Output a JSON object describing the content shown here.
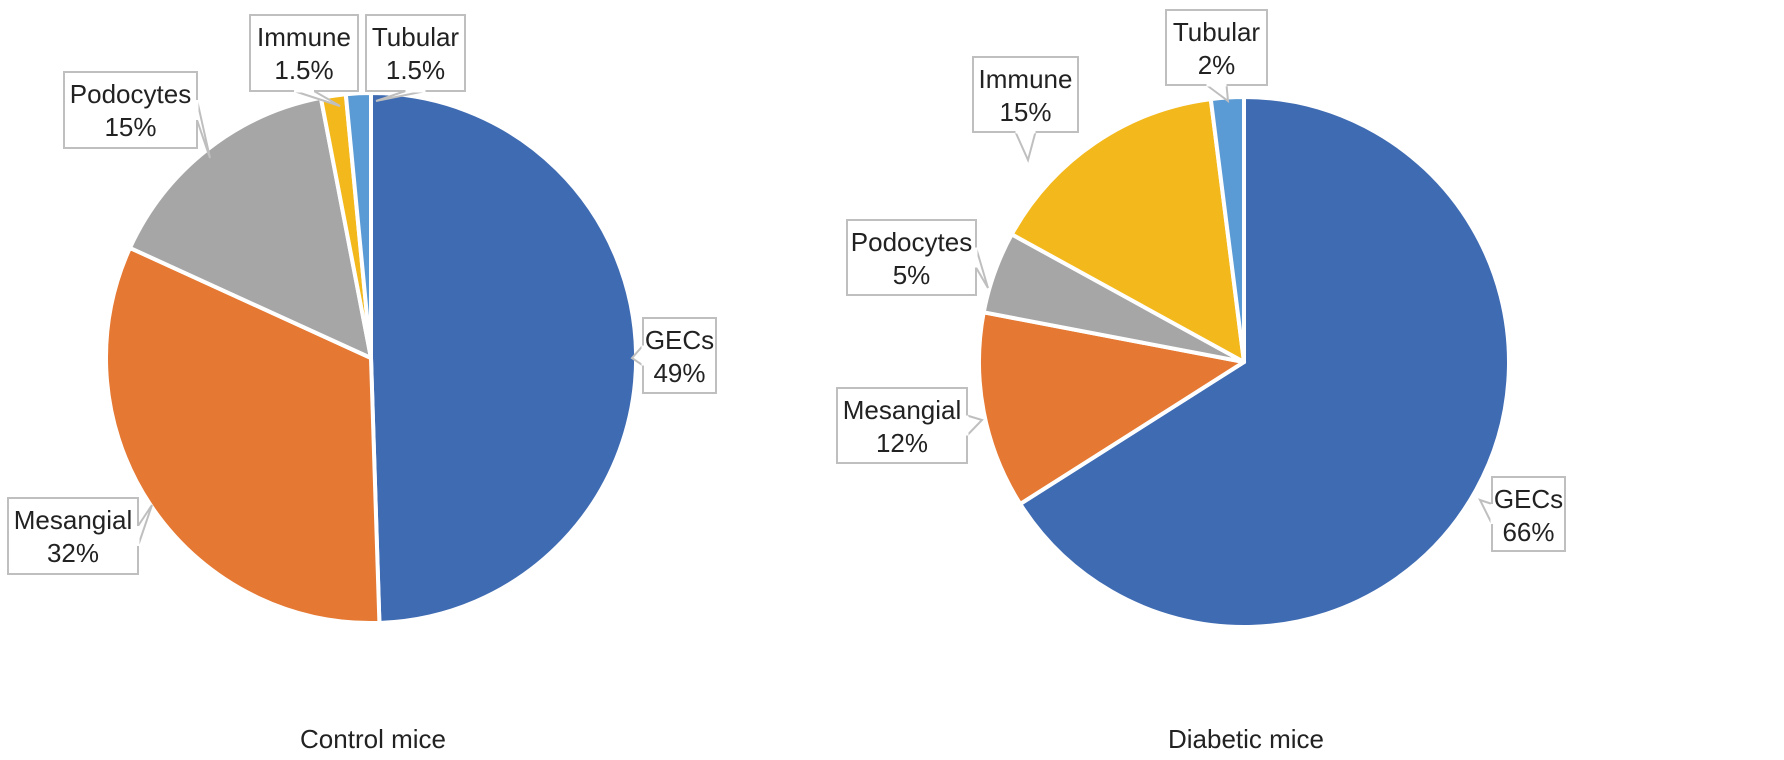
{
  "chart_data": [
    {
      "type": "pie",
      "title": "Control mice",
      "slices": [
        {
          "label": "GECs",
          "value": 49,
          "value_label": "49%",
          "color": "#3F6BB3"
        },
        {
          "label": "Mesangial",
          "value": 32,
          "value_label": "32%",
          "color": "#E57832"
        },
        {
          "label": "Podocytes",
          "value": 15,
          "value_label": "15%",
          "color": "#A6A6A6"
        },
        {
          "label": "Immune",
          "value": 1.5,
          "value_label": "1.5%",
          "color": "#F3B81C"
        },
        {
          "label": "Tubular",
          "value": 1.5,
          "value_label": "1.5%",
          "color": "#5B9BD5"
        }
      ]
    },
    {
      "type": "pie",
      "title": "Diabetic mice",
      "slices": [
        {
          "label": "GECs",
          "value": 66,
          "value_label": "66%",
          "color": "#3F6BB3"
        },
        {
          "label": "Mesangial",
          "value": 12,
          "value_label": "12%",
          "color": "#E57832"
        },
        {
          "label": "Podocytes",
          "value": 5,
          "value_label": "5%",
          "color": "#A6A6A6"
        },
        {
          "label": "Immune",
          "value": 15,
          "value_label": "15%",
          "color": "#F3B81C"
        },
        {
          "label": "Tubular",
          "value": 2,
          "value_label": "2%",
          "color": "#5B9BD5"
        }
      ]
    }
  ]
}
